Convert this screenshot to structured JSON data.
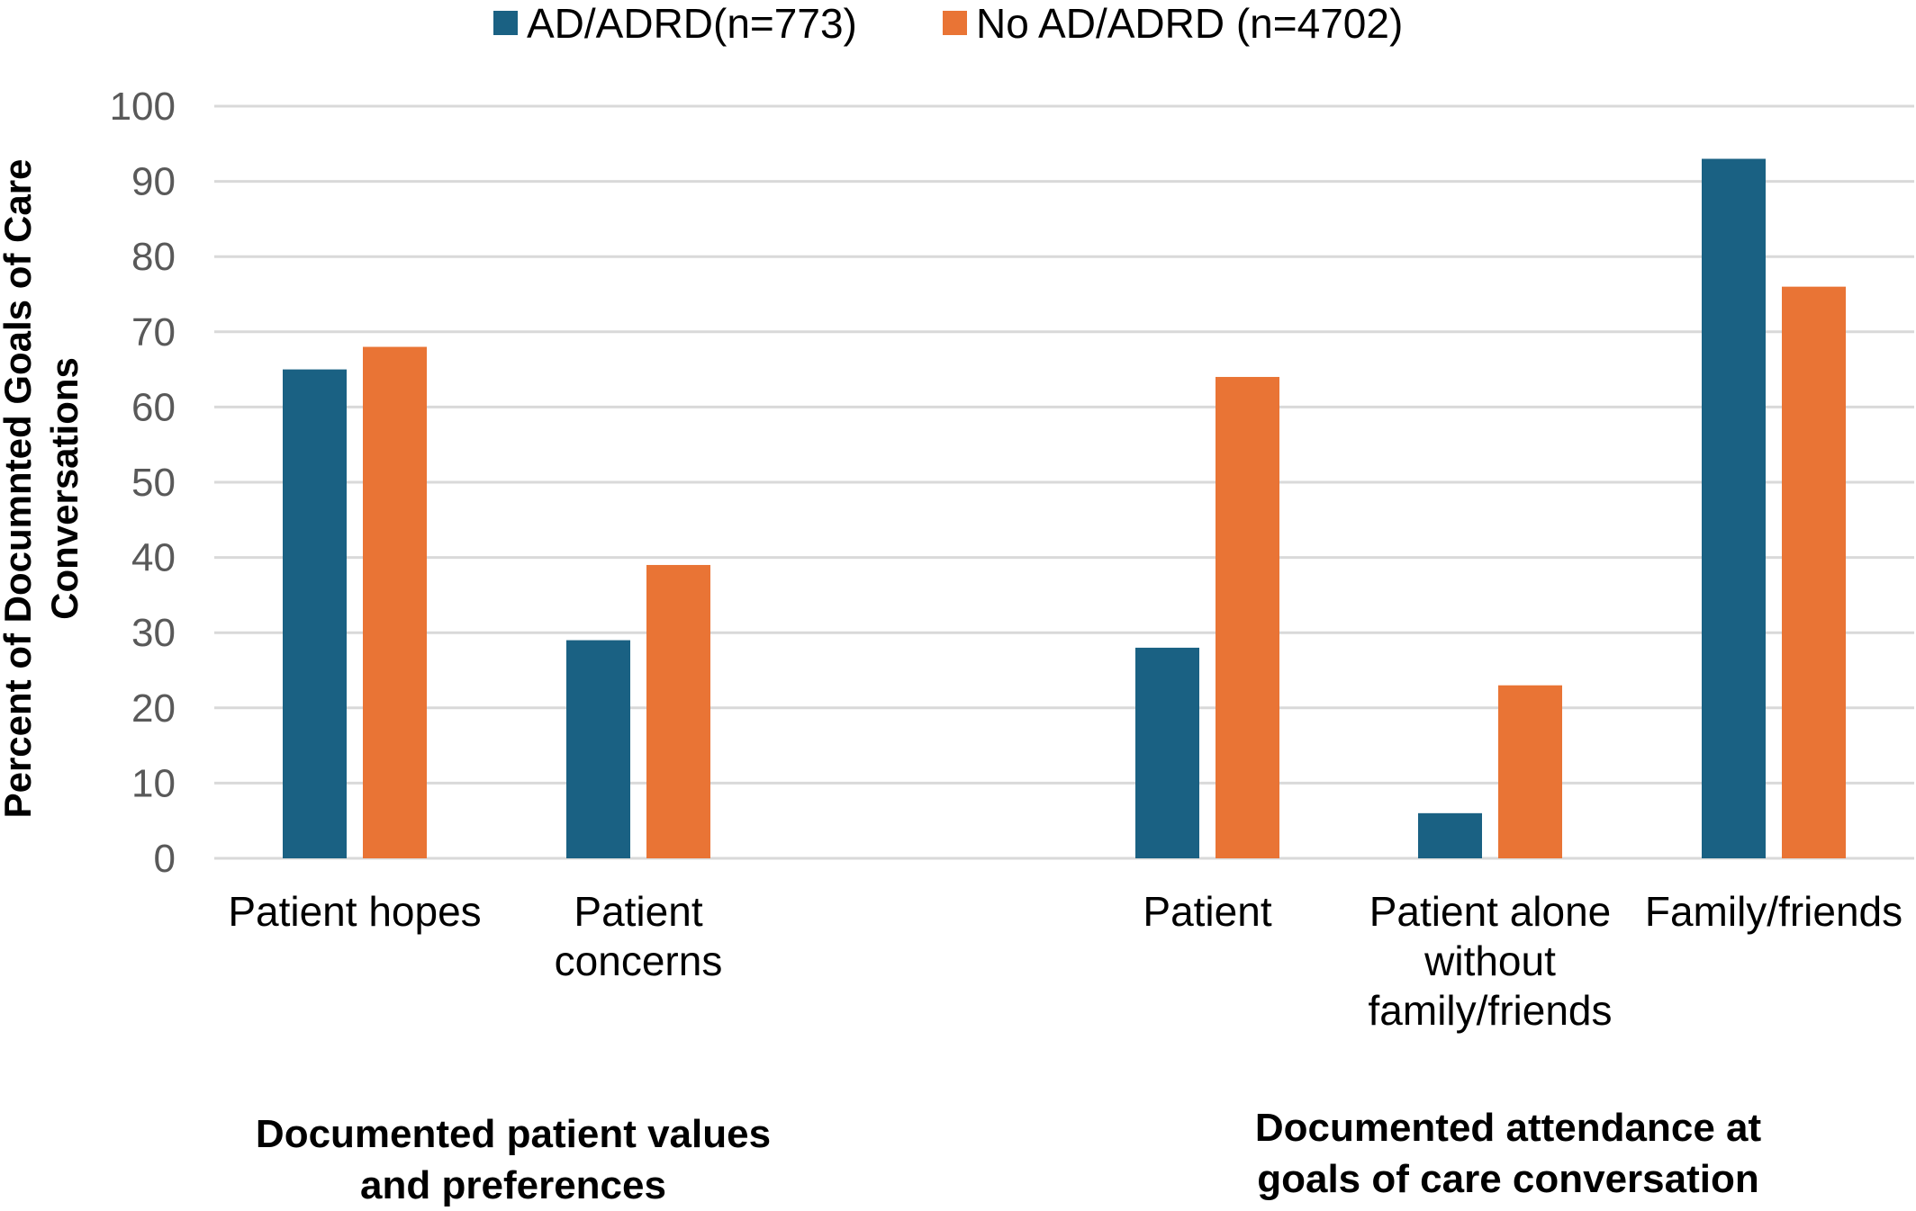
{
  "chart_data": {
    "type": "bar",
    "title": "",
    "ylabel": [
      "Percent of Documnted Goals of Care",
      "Conversations"
    ],
    "xlabel": "",
    "ylim": [
      0,
      100
    ],
    "yticks": [
      "0",
      "10",
      "20",
      "30",
      "40",
      "50",
      "60",
      "70",
      "80",
      "90",
      "100"
    ],
    "grid": true,
    "legend_position": "top",
    "categories": [
      [
        "Patient hopes"
      ],
      [
        "Patient",
        "concerns"
      ],
      [
        "Patient"
      ],
      [
        "Patient alone",
        "without",
        "family/friends"
      ],
      [
        "Family/friends"
      ]
    ],
    "series": [
      {
        "name": "AD/ADRD(n=773)",
        "color": "#1a6183",
        "values": [
          65,
          29,
          28,
          6,
          93
        ]
      },
      {
        "name": "No AD/ADRD (n=4702)",
        "color": "#e97435",
        "values": [
          68,
          39,
          64,
          23,
          76
        ]
      }
    ],
    "groups": [
      {
        "lines": [
          "Documented patient values",
          "and preferences"
        ]
      },
      {
        "lines": [
          "Documented attendance at",
          "goals of care conversation"
        ]
      }
    ]
  }
}
